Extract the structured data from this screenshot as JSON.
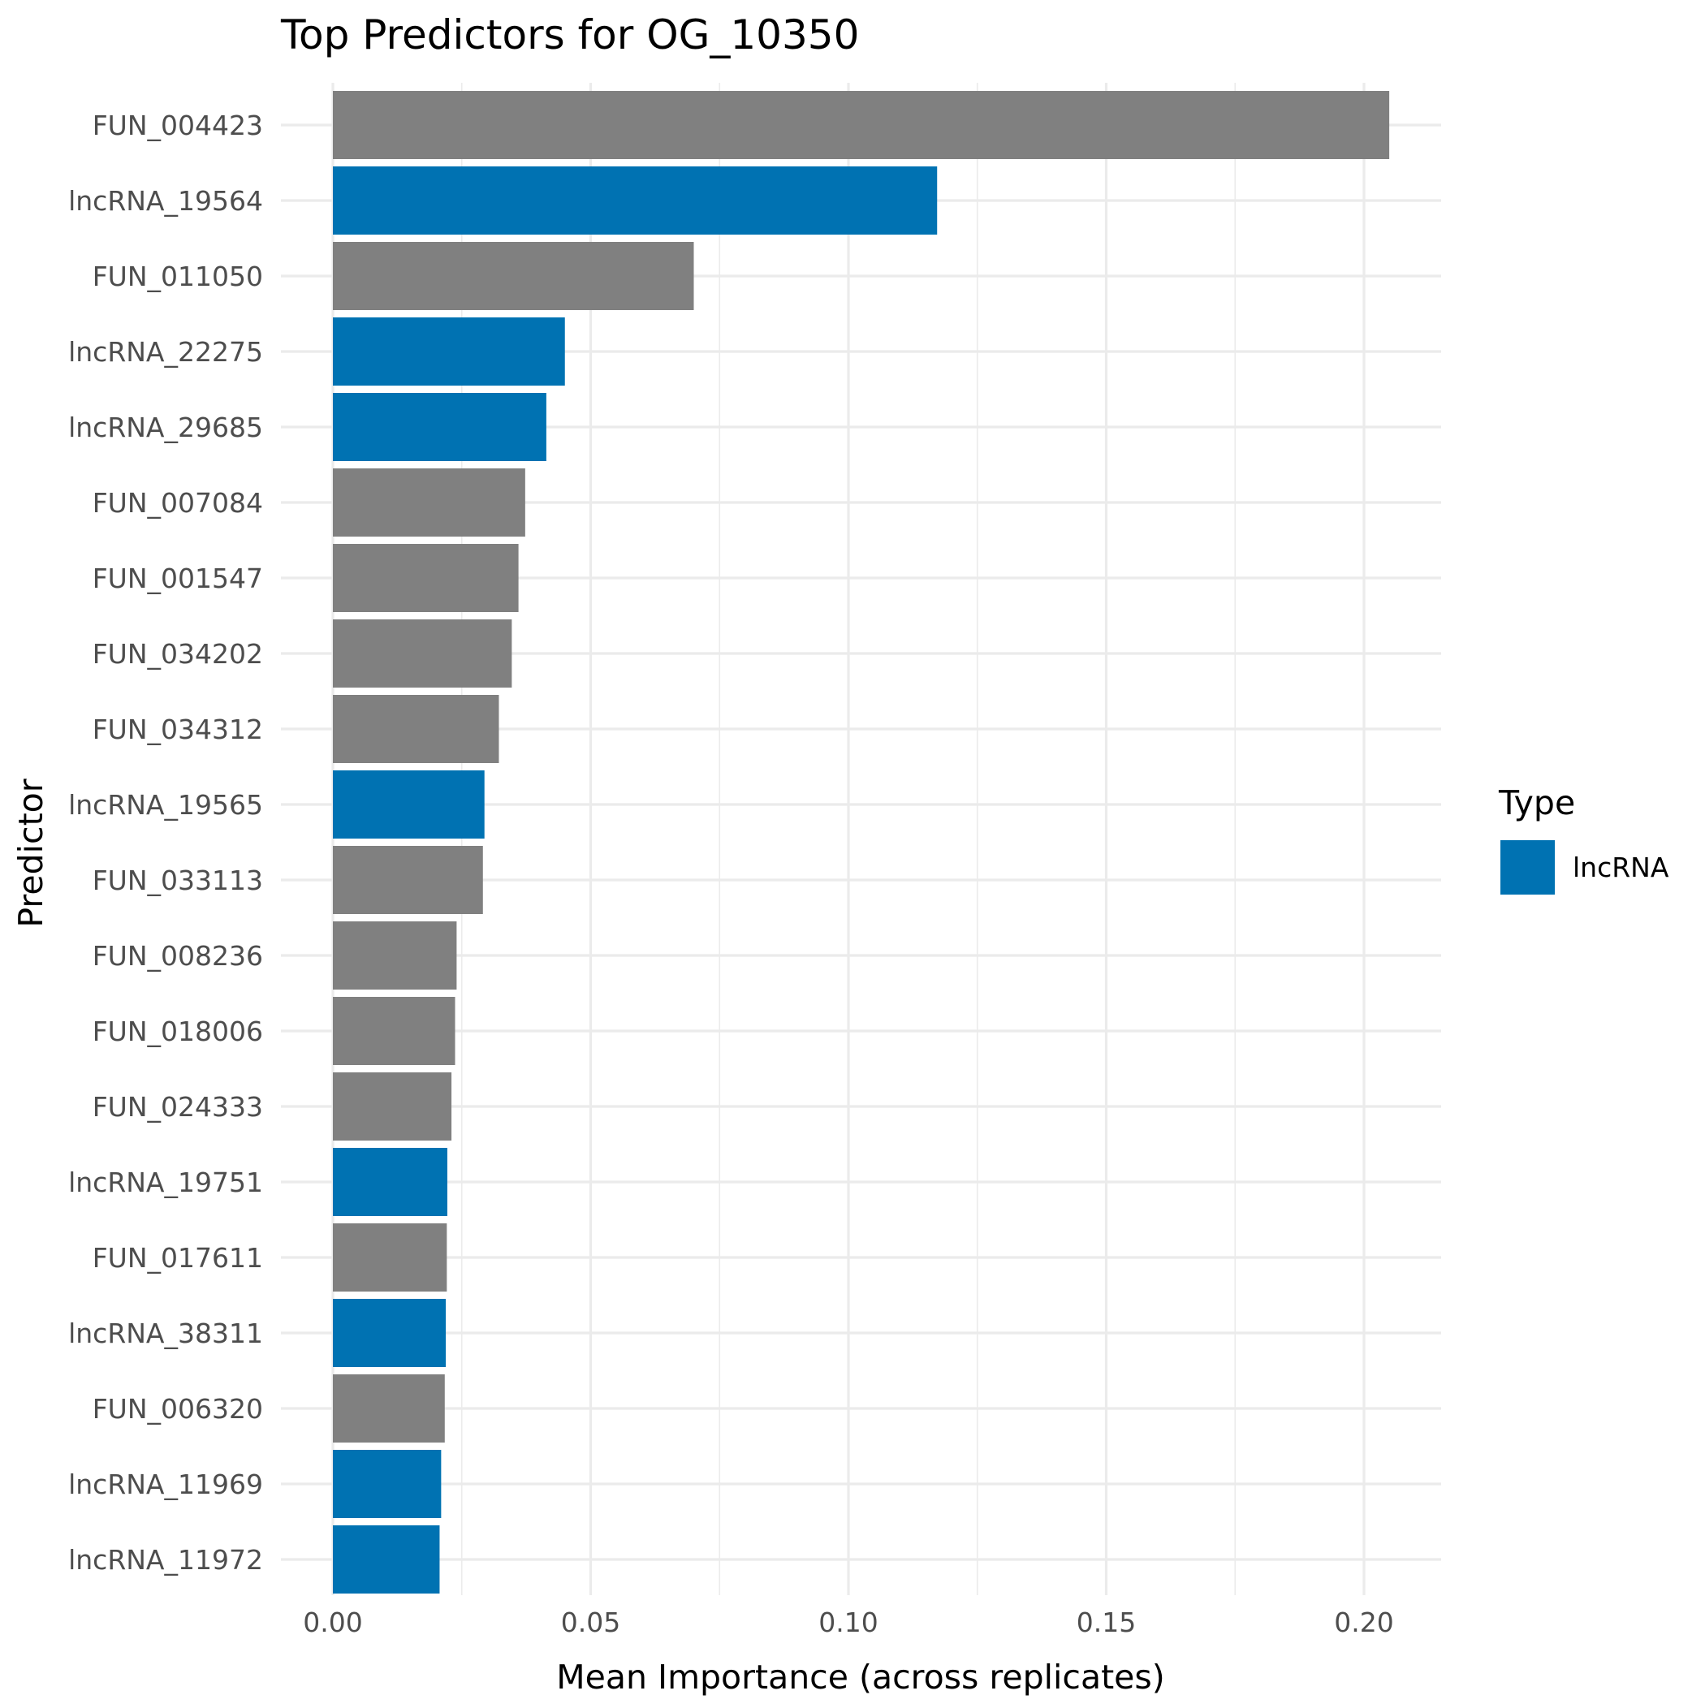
{
  "chart_data": {
    "type": "bar",
    "orientation": "horizontal",
    "title": "Top Predictors for OG_10350",
    "xlabel": "Mean Importance (across replicates)",
    "ylabel": "Predictor",
    "xlim": [
      0,
      0.215
    ],
    "xticks": [
      0,
      0.05,
      0.1,
      0.15,
      0.2
    ],
    "xtick_labels": [
      "0.00",
      "0.05",
      "0.10",
      "0.15",
      "0.20"
    ],
    "grid": true,
    "legend": {
      "title": "Type",
      "position": "right",
      "entries": [
        {
          "label": "lncRNA",
          "color": "#0072B2"
        }
      ]
    },
    "colors": {
      "lncRNA": "#0072B2",
      "other": "#808080"
    },
    "categories": [
      "FUN_004423",
      "lncRNA_19564",
      "FUN_011050",
      "lncRNA_22275",
      "lncRNA_29685",
      "FUN_007084",
      "FUN_001547",
      "FUN_034202",
      "FUN_034312",
      "lncRNA_19565",
      "FUN_033113",
      "FUN_008236",
      "FUN_018006",
      "FUN_024333",
      "lncRNA_19751",
      "FUN_017611",
      "lncRNA_38311",
      "FUN_006320",
      "lncRNA_11969",
      "lncRNA_11972"
    ],
    "values": [
      0.2049,
      0.1172,
      0.07,
      0.045,
      0.0414,
      0.0373,
      0.036,
      0.0347,
      0.0322,
      0.0294,
      0.0291,
      0.024,
      0.0237,
      0.023,
      0.0222,
      0.0221,
      0.0219,
      0.0217,
      0.021,
      0.0207
    ],
    "types": [
      "other",
      "lncRNA",
      "other",
      "lncRNA",
      "lncRNA",
      "other",
      "other",
      "other",
      "other",
      "lncRNA",
      "other",
      "other",
      "other",
      "other",
      "lncRNA",
      "other",
      "lncRNA",
      "other",
      "lncRNA",
      "lncRNA"
    ]
  }
}
